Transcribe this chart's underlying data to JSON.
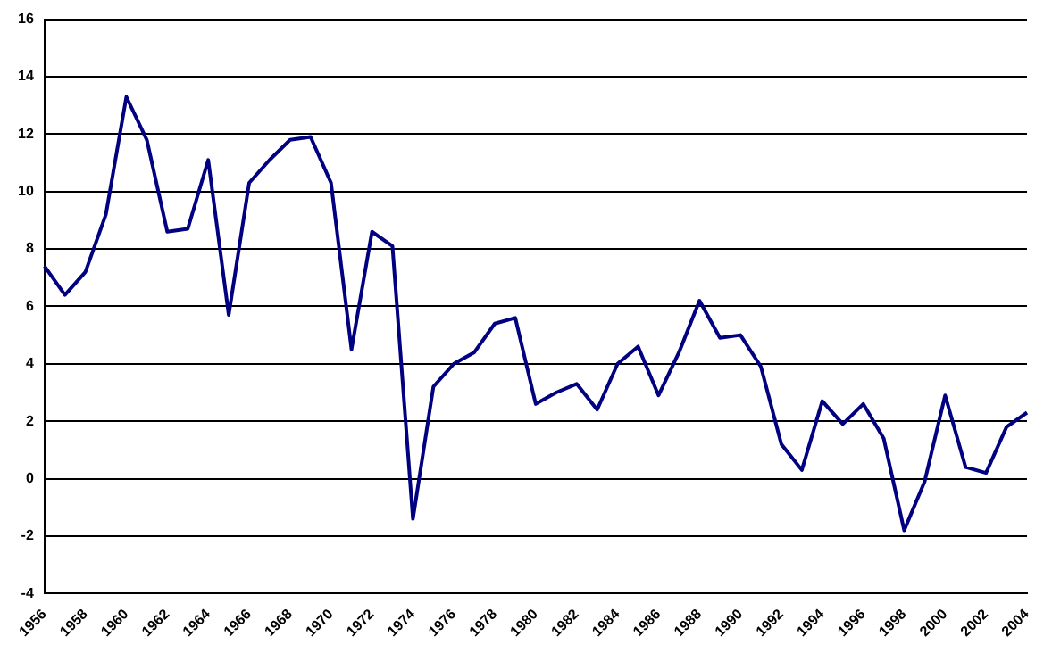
{
  "chart_data": {
    "type": "line",
    "categories": [
      "1956",
      null,
      "1958",
      null,
      "1960",
      null,
      "1962",
      null,
      "1964",
      null,
      "1966",
      null,
      "1968",
      null,
      "1970",
      null,
      "1972",
      null,
      "1974",
      null,
      "1976",
      null,
      "1978",
      null,
      "1980",
      null,
      "1982",
      null,
      "1984",
      null,
      "1986",
      null,
      "1988",
      null,
      "1990",
      null,
      "1992",
      null,
      "1994",
      null,
      "1996",
      null,
      "1998",
      null,
      "2000",
      null,
      "2002",
      null,
      "2004"
    ],
    "series": [
      {
        "color": "#000080",
        "values": [
          7.4,
          6.4,
          7.2,
          9.2,
          13.3,
          11.8,
          8.6,
          8.7,
          11.1,
          5.7,
          10.3,
          11.1,
          11.8,
          11.9,
          10.3,
          4.5,
          8.6,
          8.1,
          -1.4,
          3.2,
          4.0,
          4.4,
          5.4,
          5.6,
          2.6,
          3.0,
          3.3,
          2.4,
          4.0,
          4.6,
          2.9,
          4.4,
          6.2,
          4.9,
          5.0,
          3.9,
          1.2,
          0.3,
          2.7,
          1.9,
          2.6,
          1.4,
          -1.8,
          -0.1,
          2.9,
          0.4,
          0.2,
          1.8,
          2.3
        ]
      }
    ],
    "ylim": [
      -4,
      16
    ],
    "yticks": [
      -4,
      -2,
      0,
      2,
      4,
      6,
      8,
      10,
      12,
      14,
      16
    ],
    "grid": "y",
    "legend": false,
    "marker": "none",
    "line_style": "solid"
  }
}
